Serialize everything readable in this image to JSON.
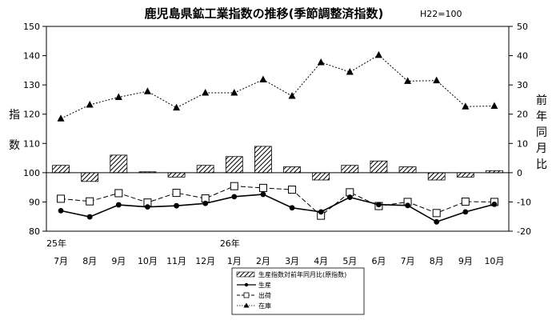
{
  "chart_data": {
    "type": "bar+line",
    "title": "鹿児島県鉱工業指数の推移(季節調整済指数)",
    "base_note": "H22=100",
    "categories": [
      "7月",
      "8月",
      "9月",
      "10月",
      "11月",
      "12月",
      "1月",
      "2月",
      "3月",
      "4月",
      "5月",
      "6月",
      "7月",
      "8月",
      "9月",
      "10月"
    ],
    "year_labels": [
      {
        "index": 0,
        "label": "25年"
      },
      {
        "index": 6,
        "label": "26年"
      }
    ],
    "left_axis": {
      "label": "指数",
      "min": 80,
      "max": 150,
      "ticks": [
        80,
        90,
        100,
        110,
        120,
        130,
        140,
        150
      ]
    },
    "right_axis": {
      "label": "前年同月比",
      "min": -20,
      "max": 50,
      "ticks": [
        -20,
        -10,
        0,
        10,
        20,
        30,
        40,
        50
      ]
    },
    "series": [
      {
        "name": "生産指数対前年同月比(原指数)",
        "kind": "bar",
        "axis": "right",
        "values": [
          2.5,
          -3.0,
          6.0,
          0.3,
          -1.5,
          2.5,
          5.5,
          9.0,
          2.0,
          -2.5,
          2.5,
          4.0,
          2.0,
          -2.5,
          -1.5,
          0.7
        ]
      },
      {
        "name": "生産",
        "kind": "line",
        "marker": "dot",
        "axis": "left",
        "values": [
          87.0,
          84.9,
          89.0,
          88.3,
          88.7,
          89.5,
          91.8,
          92.6,
          88.0,
          86.6,
          91.6,
          89.1,
          88.8,
          83.2,
          86.6,
          89.2
        ]
      },
      {
        "name": "出荷",
        "kind": "line",
        "marker": "square",
        "axis": "left",
        "values": [
          91.1,
          90.2,
          93.0,
          89.8,
          93.1,
          91.2,
          95.4,
          94.8,
          94.2,
          85.3,
          93.3,
          88.6,
          90.0,
          86.2,
          90.1,
          90.0
        ]
      },
      {
        "name": "在庫",
        "kind": "line",
        "marker": "triangle",
        "axis": "right",
        "values": [
          18.5,
          23.2,
          25.8,
          27.8,
          22.2,
          27.3,
          27.3,
          31.8,
          26.2,
          37.7,
          34.4,
          40.2,
          31.3,
          31.5,
          22.6,
          22.8
        ]
      }
    ],
    "legend_position": "bottom-center",
    "grid": false
  }
}
